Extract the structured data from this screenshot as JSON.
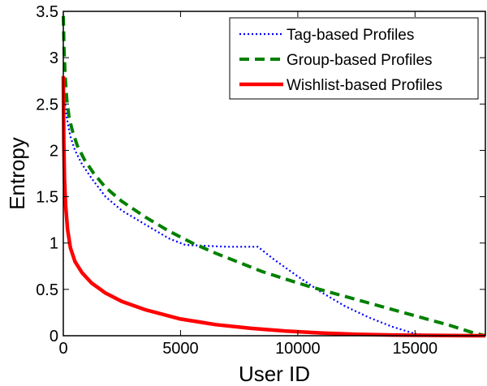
{
  "chart_data": {
    "type": "line",
    "title": "",
    "xlabel": "User ID",
    "ylabel": "Entropy",
    "xlim": [
      0,
      18000
    ],
    "ylim": [
      0,
      3.5
    ],
    "x_ticks": [
      0,
      5000,
      10000,
      15000
    ],
    "y_ticks": [
      0,
      0.5,
      1,
      1.5,
      2,
      2.5,
      3,
      3.5
    ],
    "x_tick_labels": [
      "0",
      "5000",
      "10000",
      "15000"
    ],
    "y_tick_labels": [
      "0",
      "0.5",
      "1",
      "1.5",
      "2",
      "2.5",
      "3",
      "3.5"
    ],
    "grid": false,
    "legend_position": "top-right",
    "series": [
      {
        "name": "Tag-based Profiles",
        "color": "#0000ff",
        "style": "dotted",
        "x": [
          0,
          50,
          150,
          300,
          500,
          800,
          1200,
          1800,
          2500,
          3500,
          4500,
          5200,
          6000,
          7000,
          8000,
          8300,
          8600,
          9000,
          10000,
          11000,
          12000,
          13000,
          14000,
          14500,
          15000,
          15500,
          16000
        ],
        "y": [
          2.8,
          2.55,
          2.35,
          2.15,
          2.0,
          1.85,
          1.7,
          1.5,
          1.35,
          1.2,
          1.05,
          0.98,
          0.97,
          0.96,
          0.96,
          0.96,
          0.9,
          0.82,
          0.64,
          0.47,
          0.32,
          0.2,
          0.1,
          0.06,
          0.02,
          0.01,
          0.0
        ]
      },
      {
        "name": "Group-based Profiles",
        "color": "#008000",
        "style": "dashed",
        "x": [
          0,
          30,
          80,
          150,
          250,
          400,
          600,
          900,
          1300,
          1800,
          2500,
          3500,
          4500,
          5500,
          6500,
          7500,
          8500,
          9500,
          10500,
          11500,
          12500,
          13500,
          14500,
          15500,
          16500,
          17000,
          17500,
          18000
        ],
        "y": [
          3.45,
          3.1,
          2.8,
          2.55,
          2.35,
          2.2,
          2.05,
          1.9,
          1.75,
          1.6,
          1.45,
          1.28,
          1.13,
          1.0,
          0.89,
          0.79,
          0.69,
          0.61,
          0.53,
          0.46,
          0.39,
          0.32,
          0.25,
          0.18,
          0.11,
          0.07,
          0.03,
          0.0
        ]
      },
      {
        "name": "Wishlist-based Profiles",
        "color": "#ff0000",
        "style": "solid",
        "x": [
          0,
          20,
          50,
          100,
          180,
          300,
          500,
          800,
          1200,
          1800,
          2500,
          3500,
          5000,
          6500,
          8000,
          9500,
          11000,
          12500,
          14000,
          15500,
          17000,
          18000
        ],
        "y": [
          2.8,
          2.1,
          1.7,
          1.4,
          1.15,
          0.95,
          0.8,
          0.68,
          0.57,
          0.46,
          0.37,
          0.28,
          0.18,
          0.12,
          0.08,
          0.05,
          0.03,
          0.015,
          0.008,
          0.004,
          0.001,
          0.0
        ]
      }
    ]
  }
}
